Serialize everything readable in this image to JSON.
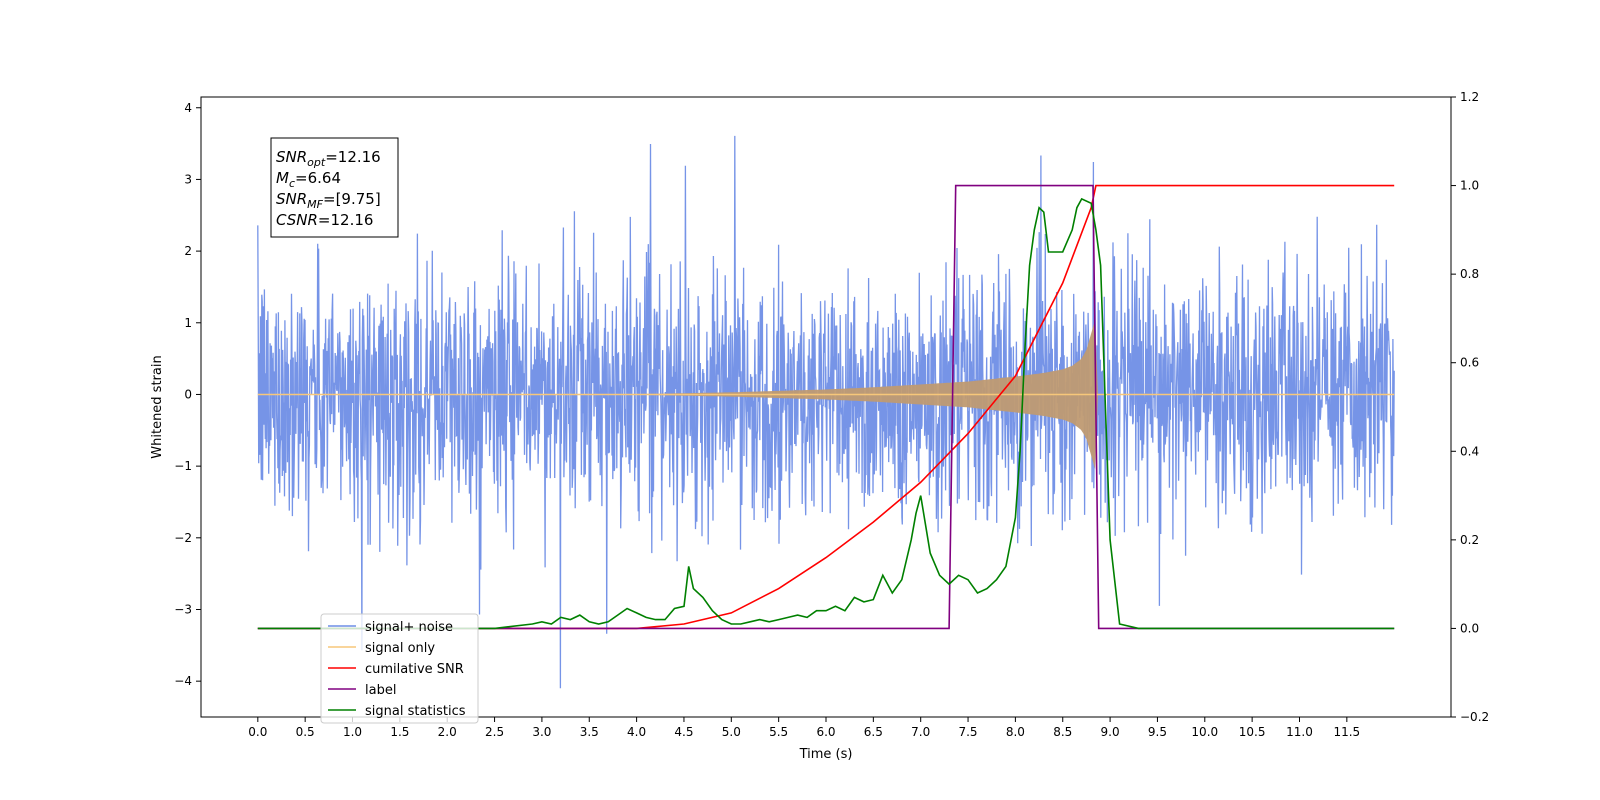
{
  "chart_data": {
    "type": "line",
    "title": "",
    "xlabel": "Time (s)",
    "ylabel": "Whitened strain",
    "xlim": [
      -0.6,
      12.6
    ],
    "ylim": [
      -4.5,
      4.15
    ],
    "ylim_right": [
      -0.2,
      1.2
    ],
    "x_ticks": [
      0.0,
      0.5,
      1.0,
      1.5,
      2.0,
      2.5,
      3.0,
      3.5,
      4.0,
      4.5,
      5.0,
      5.5,
      6.0,
      6.5,
      7.0,
      7.5,
      8.0,
      8.5,
      9.0,
      9.5,
      10.0,
      10.5,
      11.0,
      11.5
    ],
    "x_tick_labels": [
      "0.0",
      "0.5",
      "1.0",
      "1.5",
      "2.0",
      "2.5",
      "3.0",
      "3.5",
      "4.0",
      "4.5",
      "5.0",
      "5.5",
      "6.0",
      "6.5",
      "7.0",
      "7.5",
      "8.0",
      "8.5",
      "9.0",
      "9.5",
      "10.0",
      "10.5",
      "11.0",
      "11.5"
    ],
    "y_ticks": [
      -4,
      -3,
      -2,
      -1,
      0,
      1,
      2,
      3,
      4
    ],
    "y_tick_labels": [
      "−4",
      "−3",
      "−2",
      "−1",
      "0",
      "1",
      "2",
      "3",
      "4"
    ],
    "y_ticks_right": [
      -0.2,
      0.0,
      0.2,
      0.4,
      0.6,
      0.8,
      1.0,
      1.2
    ],
    "y_tick_labels_right": [
      "−0.2",
      "0.0",
      "0.2",
      "0.4",
      "0.6",
      "0.8",
      "1.0",
      "1.2"
    ],
    "grid": false,
    "legend_position": "bottom-left",
    "annotation": {
      "lines": [
        {
          "main": "SNR",
          "sub": "opt",
          "rest": "=12.16"
        },
        {
          "main": "M",
          "sub": "c",
          "rest": "=6.64"
        },
        {
          "main": "SNR",
          "sub": "MF",
          "rest": "=[9.75]"
        },
        {
          "main": "CSNR",
          "sub": "",
          "rest": "=12.16"
        }
      ]
    },
    "series": [
      {
        "name": "signal+ noise",
        "axis": "left",
        "color": "#6f8ee6",
        "kind": "noise",
        "x_range": [
          0.0,
          12.0
        ],
        "envelope": [
          [
            0.0,
            1.0
          ],
          [
            6.0,
            1.0
          ],
          [
            7.3,
            1.0
          ],
          [
            8.0,
            1.0
          ],
          [
            8.8,
            1.0
          ],
          [
            12.0,
            1.0
          ]
        ]
      },
      {
        "name": "signal only",
        "axis": "left",
        "color": "#f7c77a",
        "fill_color": "#bf9a72",
        "kind": "chirp",
        "x": [
          0.0,
          4.0,
          5.0,
          6.0,
          6.5,
          7.0,
          7.5,
          8.0,
          8.3,
          8.5,
          8.6,
          8.7,
          8.75,
          8.8,
          8.85,
          8.86,
          12.0
        ],
        "amplitude": [
          0.0,
          0.005,
          0.03,
          0.07,
          0.1,
          0.14,
          0.18,
          0.25,
          0.3,
          0.35,
          0.4,
          0.5,
          0.62,
          0.85,
          1.08,
          0.0,
          0.0
        ]
      },
      {
        "name": "cumilative SNR",
        "axis": "right",
        "color": "#ff0000",
        "x": [
          0.0,
          4.0,
          4.5,
          5.0,
          5.5,
          6.0,
          6.5,
          7.0,
          7.5,
          8.0,
          8.5,
          8.8,
          8.85,
          8.9,
          12.0
        ],
        "y": [
          0.0,
          0.0,
          0.01,
          0.035,
          0.09,
          0.16,
          0.24,
          0.33,
          0.44,
          0.57,
          0.78,
          0.95,
          1.0,
          1.0,
          1.0
        ]
      },
      {
        "name": "label",
        "axis": "right",
        "color": "#800080",
        "x": [
          0.0,
          7.3,
          7.37,
          8.82,
          8.88,
          12.0
        ],
        "y": [
          0.0,
          0.0,
          1.0,
          1.0,
          0.0,
          0.0
        ]
      },
      {
        "name": "signal statistics",
        "axis": "right",
        "color": "#008000",
        "x": [
          0.0,
          2.5,
          2.9,
          3.0,
          3.1,
          3.2,
          3.3,
          3.4,
          3.5,
          3.6,
          3.7,
          3.8,
          3.9,
          4.0,
          4.1,
          4.2,
          4.3,
          4.4,
          4.5,
          4.55,
          4.6,
          4.7,
          4.8,
          4.9,
          5.0,
          5.1,
          5.2,
          5.3,
          5.4,
          5.5,
          5.6,
          5.7,
          5.8,
          5.9,
          6.0,
          6.1,
          6.2,
          6.3,
          6.4,
          6.5,
          6.6,
          6.7,
          6.8,
          6.9,
          6.95,
          7.0,
          7.1,
          7.2,
          7.3,
          7.4,
          7.5,
          7.6,
          7.7,
          7.8,
          7.9,
          8.0,
          8.05,
          8.1,
          8.15,
          8.2,
          8.25,
          8.3,
          8.35,
          8.4,
          8.5,
          8.6,
          8.65,
          8.7,
          8.8,
          8.85,
          8.9,
          8.95,
          9.0,
          9.1,
          9.3,
          12.0
        ],
        "y": [
          0.0,
          0.0,
          0.01,
          0.015,
          0.01,
          0.025,
          0.02,
          0.03,
          0.015,
          0.01,
          0.015,
          0.03,
          0.045,
          0.035,
          0.025,
          0.02,
          0.02,
          0.045,
          0.05,
          0.14,
          0.09,
          0.07,
          0.04,
          0.02,
          0.01,
          0.01,
          0.015,
          0.02,
          0.015,
          0.02,
          0.025,
          0.03,
          0.025,
          0.04,
          0.04,
          0.05,
          0.04,
          0.07,
          0.06,
          0.065,
          0.12,
          0.08,
          0.11,
          0.2,
          0.26,
          0.3,
          0.17,
          0.12,
          0.1,
          0.12,
          0.11,
          0.08,
          0.09,
          0.11,
          0.14,
          0.25,
          0.4,
          0.63,
          0.82,
          0.9,
          0.95,
          0.94,
          0.85,
          0.85,
          0.85,
          0.9,
          0.95,
          0.97,
          0.96,
          0.9,
          0.82,
          0.5,
          0.2,
          0.01,
          0.0,
          0.0
        ]
      }
    ],
    "legend_entries": [
      {
        "label": "signal+ noise",
        "color": "#6f8ee6"
      },
      {
        "label": "signal only",
        "color": "#f7c77a"
      },
      {
        "label": "cumilative SNR",
        "color": "#ff0000"
      },
      {
        "label": "label",
        "color": "#800080"
      },
      {
        "label": "signal statistics",
        "color": "#008000"
      }
    ]
  }
}
